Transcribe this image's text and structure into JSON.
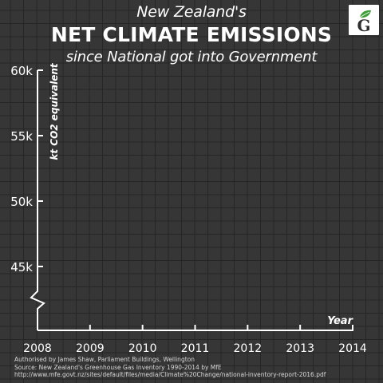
{
  "header": {
    "subtitle_top": "New Zealand's",
    "title": "NET CLIMATE EMISSIONS",
    "subtitle_bottom": "since National got into Government"
  },
  "logo": {
    "icon": "green-party-g-icon",
    "letter": "G",
    "color": "#3f9e3a"
  },
  "chart_data": {
    "type": "line",
    "title": "NET CLIMATE EMISSIONS",
    "subtitle": "since National got into Government",
    "xlabel": "Year",
    "ylabel": "kt CO2 equivalent",
    "x_ticks": [
      "2008",
      "2009",
      "2010",
      "2011",
      "2012",
      "2013",
      "2014"
    ],
    "y_ticks": [
      "60k",
      "55k",
      "50k",
      "45k"
    ],
    "y_tick_values": [
      60000,
      55000,
      50000,
      45000
    ],
    "xlim": [
      2008,
      2014
    ],
    "ylim": [
      42000,
      60000
    ],
    "y_axis_break": true,
    "grid": true,
    "series": []
  },
  "footer": {
    "line1": "Authorised by James Shaw, Parliament Buildings, Wellington",
    "line2": "Source: New Zealand's Greenhouse Gas Inventory 1990-2014 by MfE",
    "line3": "http://www.mfe.govt.nz/sites/default/files/media/Climate%20Change/national-inventory-report-2016.pdf"
  },
  "colors": {
    "background": "#363636",
    "grid": "#262626",
    "text": "#ffffff",
    "axis": "#ffffff"
  }
}
